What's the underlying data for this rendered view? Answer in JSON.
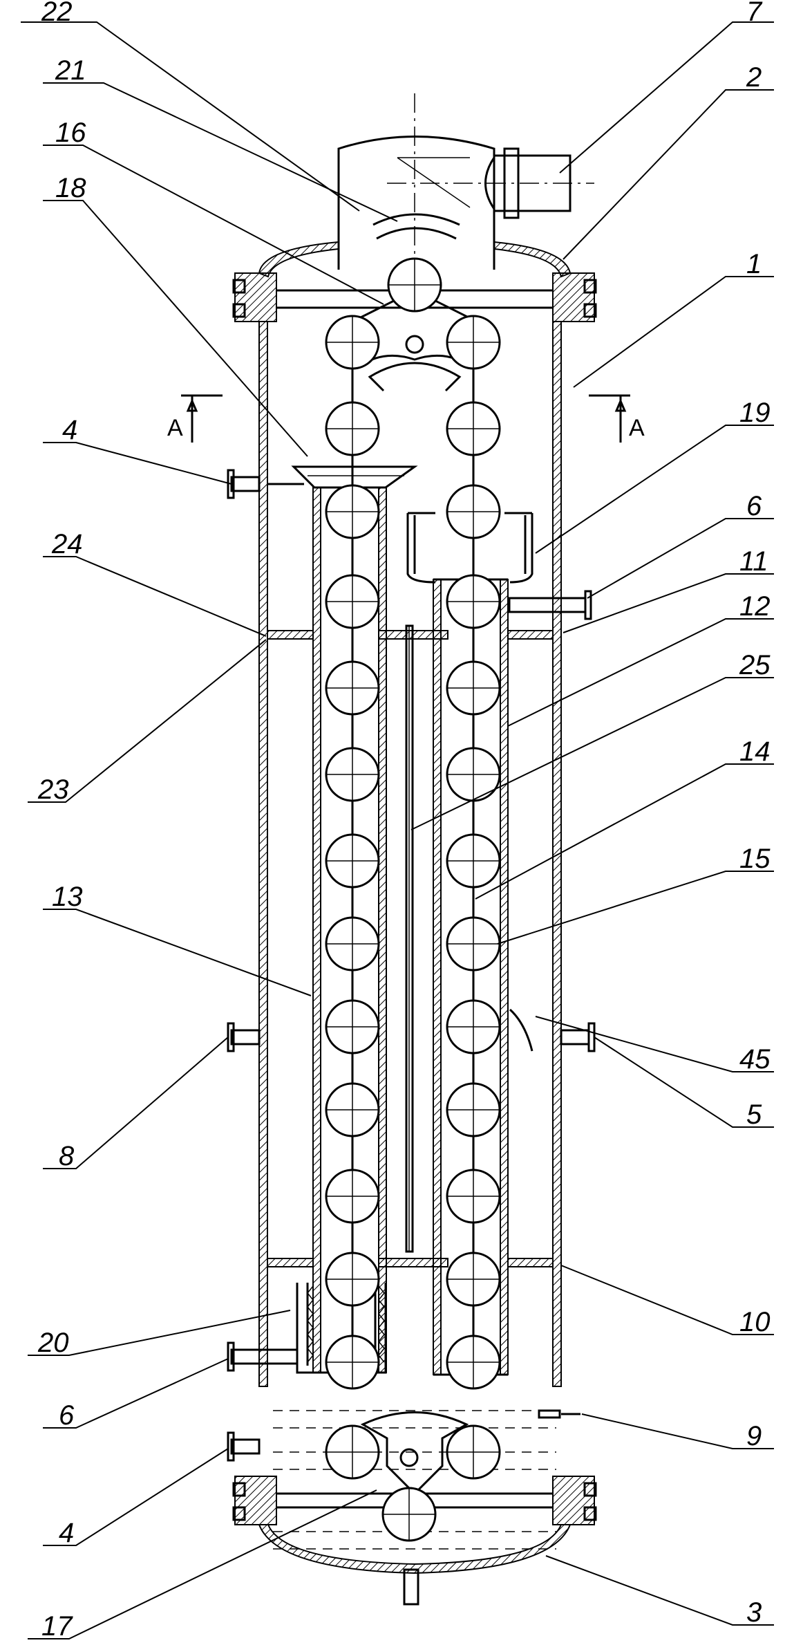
{
  "callouts": [
    {
      "id": "22",
      "text": "22"
    },
    {
      "id": "21",
      "text": "21"
    },
    {
      "id": "16",
      "text": "16"
    },
    {
      "id": "18",
      "text": "18"
    },
    {
      "id": "4a",
      "text": "4"
    },
    {
      "id": "24",
      "text": "24"
    },
    {
      "id": "23",
      "text": "23"
    },
    {
      "id": "13",
      "text": "13"
    },
    {
      "id": "8",
      "text": "8"
    },
    {
      "id": "20",
      "text": "20"
    },
    {
      "id": "6b",
      "text": "6"
    },
    {
      "id": "4b",
      "text": "4"
    },
    {
      "id": "17",
      "text": "17"
    },
    {
      "id": "7",
      "text": "7"
    },
    {
      "id": "2",
      "text": "2"
    },
    {
      "id": "1",
      "text": "1"
    },
    {
      "id": "19",
      "text": "19"
    },
    {
      "id": "6a",
      "text": "6"
    },
    {
      "id": "11",
      "text": "11"
    },
    {
      "id": "12",
      "text": "12"
    },
    {
      "id": "25",
      "text": "25"
    },
    {
      "id": "14",
      "text": "14"
    },
    {
      "id": "15",
      "text": "15"
    },
    {
      "id": "45",
      "text": "45"
    },
    {
      "id": "5",
      "text": "5"
    },
    {
      "id": "10",
      "text": "10"
    },
    {
      "id": "9",
      "text": "9"
    },
    {
      "id": "3",
      "text": "3"
    }
  ],
  "section_marker": "A",
  "colors": {
    "ink": "#000000",
    "paper": "#ffffff"
  }
}
